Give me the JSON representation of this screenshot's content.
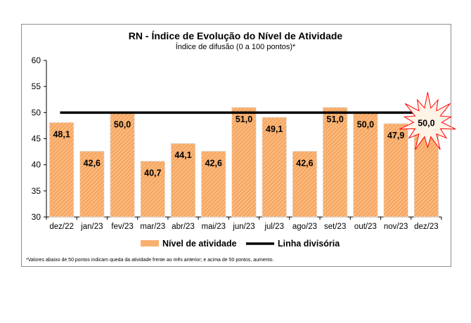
{
  "chart_data": {
    "type": "bar",
    "title": "RN - Índice de Evolução do Nível de Atividade",
    "subtitle": "Índice de difusão (0 a 100 pontos)*",
    "categories": [
      "dez/22",
      "jan/23",
      "fev/23",
      "mar/23",
      "abr/23",
      "mai/23",
      "jun/23",
      "jul/23",
      "ago/23",
      "set/23",
      "out/23",
      "nov/23",
      "dez/23"
    ],
    "series": [
      {
        "name": "Nível de atividade",
        "values": [
          48.1,
          42.6,
          50.0,
          40.7,
          44.1,
          42.6,
          51.0,
          49.1,
          42.6,
          51.0,
          50.0,
          47.9,
          50.0
        ]
      }
    ],
    "data_labels": [
      "48,1",
      "42,6",
      "50,0",
      "40,7",
      "44,1",
      "42,6",
      "51,0",
      "49,1",
      "42,6",
      "51,0",
      "50,0",
      "47,9",
      "50,0"
    ],
    "divider": {
      "name": "Linha divisória",
      "value": 50
    },
    "yticks": [
      "30",
      "35",
      "40",
      "45",
      "50",
      "55",
      "60"
    ],
    "ylim": [
      30,
      60
    ],
    "grid": false,
    "legend_position": "bottom",
    "highlight_index": 12,
    "footnote": "*Valores abaixo de 50 pontos indicam queda da atividade frente ao mês anterior; e acima de 50 pontos, aumento.",
    "colors": {
      "bar": "#f7a863",
      "bar_hatch": "#ffd8b4",
      "bar_edge": "#e2e2e2",
      "divider": "#000000",
      "burst": "#ff0000",
      "burst_fill": "#fff3e6"
    }
  }
}
